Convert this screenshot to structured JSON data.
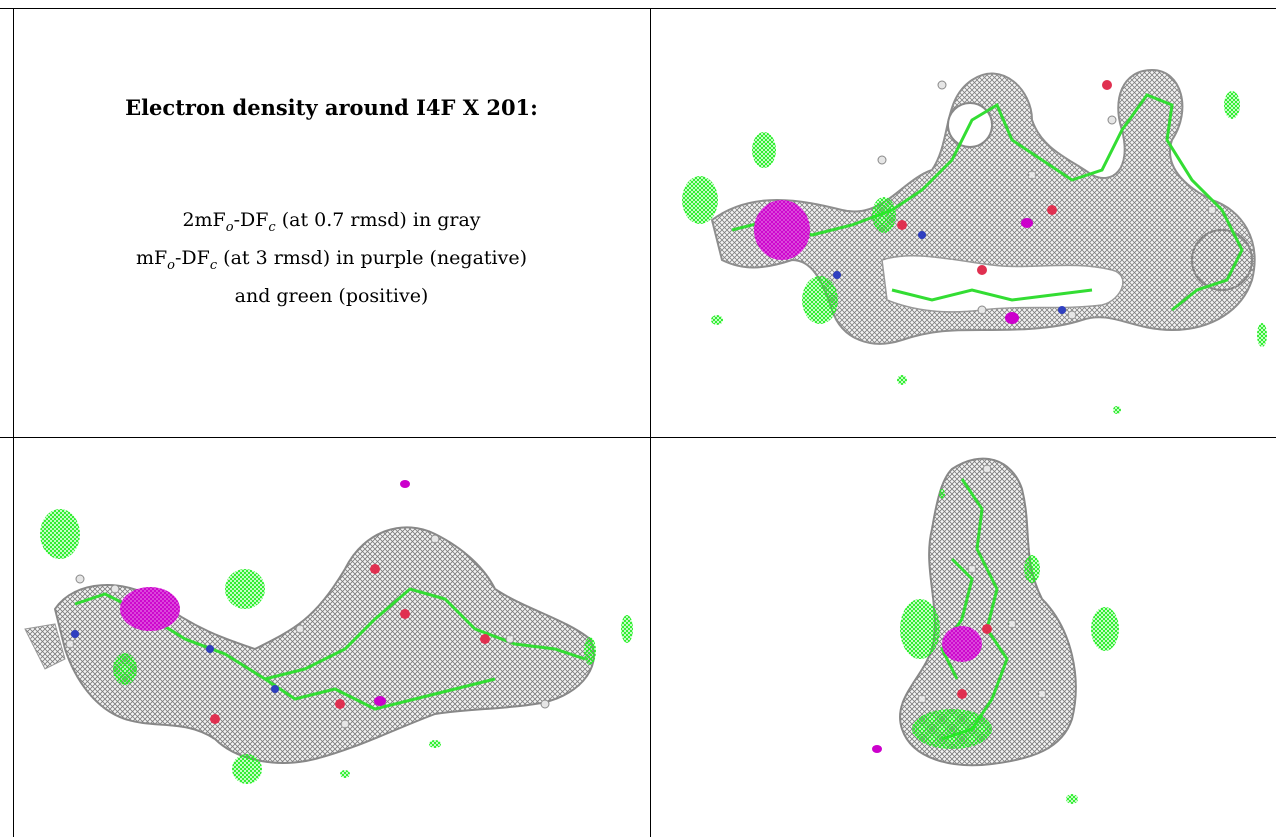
{
  "caption": {
    "title": "Electron density around I4F X 201:",
    "lines": [
      {
        "pre": "2mF",
        "s1": "o",
        "mid": "-DF",
        "s2": "c",
        "post": " (at 0.7 rmsd) in gray"
      },
      {
        "pre": "mF",
        "s1": "o",
        "mid": "-DF",
        "s2": "c",
        "post": " (at 3 rmsd) in purple (negative)"
      },
      {
        "pre": "and green (positive)",
        "s1": "",
        "mid": "",
        "s2": "",
        "post": ""
      }
    ]
  },
  "colors": {
    "mesh_gray": "#8c8c8c",
    "density_green": "#22ee22",
    "density_purple": "#cc00cc",
    "atom_white": "#e6e6e6",
    "oxygen_red": "#e03050",
    "nitrogen_blue": "#3040c0"
  },
  "panels": [
    {
      "name": "view-top-right",
      "kind": "molecular-density-render"
    },
    {
      "name": "view-bottom-left",
      "kind": "molecular-density-render"
    },
    {
      "name": "view-bottom-right",
      "kind": "molecular-density-render"
    }
  ]
}
